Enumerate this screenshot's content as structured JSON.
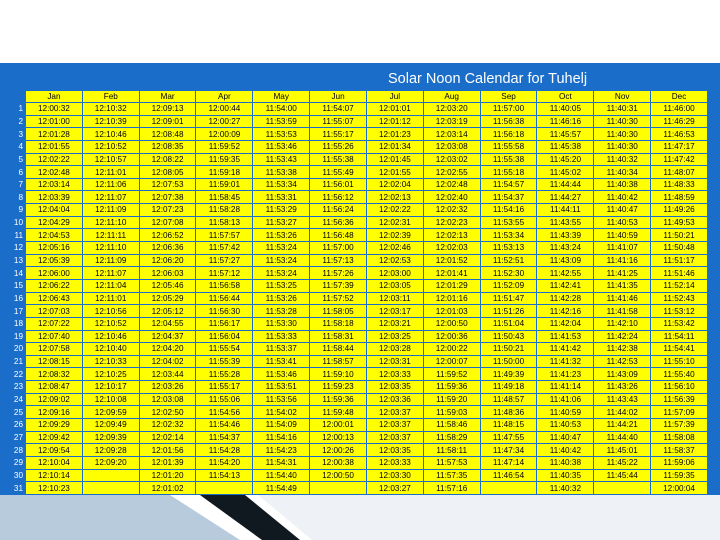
{
  "title": "Solar Noon Calendar for Tuhelj",
  "columns": [
    "Jan",
    "Feb",
    "Mar",
    "Apr",
    "May",
    "Jun",
    "Jul",
    "Aug",
    "Sep",
    "Oct",
    "Nov",
    "Dec"
  ],
  "rows": [
    {
      "day": "1",
      "times": [
        "12:00:32",
        "12:10:32",
        "12:09:13",
        "12:00:44",
        "11:54:00",
        "11:54:07",
        "12:01:01",
        "12:03:20",
        "11:57:00",
        "11:40:05",
        "11:40:31",
        "11:46:00"
      ]
    },
    {
      "day": "2",
      "times": [
        "12:01:00",
        "12:10:39",
        "12:09:01",
        "12:00:27",
        "11:53:59",
        "11:55:07",
        "12:01:12",
        "12:03:19",
        "11:56:38",
        "11:46:16",
        "11:40:30",
        "11:46:29"
      ]
    },
    {
      "day": "3",
      "times": [
        "12:01:28",
        "12:10:46",
        "12:08:48",
        "12:00:09",
        "11:53:53",
        "11:55:17",
        "12:01:23",
        "12:03:14",
        "11:56:18",
        "11:45:57",
        "11:40:30",
        "11:46:53"
      ]
    },
    {
      "day": "4",
      "times": [
        "12:01:55",
        "12:10:52",
        "12:08:35",
        "11:59:52",
        "11:53:46",
        "11:55:26",
        "12:01:34",
        "12:03:08",
        "11:55:58",
        "11:45:38",
        "11:40:30",
        "11:47:17"
      ]
    },
    {
      "day": "5",
      "times": [
        "12:02:22",
        "12:10:57",
        "12:08:22",
        "11:59:35",
        "11:53:43",
        "11:55:38",
        "12:01:45",
        "12:03:02",
        "11:55:38",
        "11:45:20",
        "11:40:32",
        "11:47:42"
      ]
    },
    {
      "day": "6",
      "times": [
        "12:02:48",
        "12:11:01",
        "12:08:05",
        "11:59:18",
        "11:53:38",
        "11:55:49",
        "12:01:55",
        "12:02:55",
        "11:55:18",
        "11:45:02",
        "11:40:34",
        "11:48:07"
      ]
    },
    {
      "day": "7",
      "times": [
        "12:03:14",
        "12:11:06",
        "12:07:53",
        "11:59:01",
        "11:53:34",
        "11:56:01",
        "12:02:04",
        "12:02:48",
        "11:54:57",
        "11:44:44",
        "11:40:38",
        "11:48:33"
      ]
    },
    {
      "day": "8",
      "times": [
        "12:03:39",
        "12:11:07",
        "12:07:38",
        "11:58:45",
        "11:53:31",
        "11:56:12",
        "12:02:13",
        "12:02:40",
        "11:54:37",
        "11:44:27",
        "11:40:42",
        "11:48:59"
      ]
    },
    {
      "day": "9",
      "times": [
        "12:04:04",
        "12:11:09",
        "12:07:23",
        "11:58:28",
        "11:53:29",
        "11:56:24",
        "12:02:22",
        "12:02:32",
        "11:54:16",
        "11:44:11",
        "11:40:47",
        "11:49:26"
      ]
    },
    {
      "day": "10",
      "times": [
        "12:04:29",
        "12:11:10",
        "12:07:08",
        "11:58:13",
        "11:53:27",
        "11:56:36",
        "12:02:31",
        "12:02:23",
        "11:53:55",
        "11:43:55",
        "11:40:53",
        "11:49:53"
      ]
    },
    {
      "day": "11",
      "times": [
        "12:04:53",
        "12:11:11",
        "12:06:52",
        "11:57:57",
        "11:53:26",
        "11:56:48",
        "12:02:39",
        "12:02:13",
        "11:53:34",
        "11:43:39",
        "11:40:59",
        "11:50:21"
      ]
    },
    {
      "day": "12",
      "times": [
        "12:05:16",
        "12:11:10",
        "12:06:36",
        "11:57:42",
        "11:53:24",
        "11:57:00",
        "12:02:46",
        "12:02:03",
        "11:53:13",
        "11:43:24",
        "11:41:07",
        "11:50:48"
      ]
    },
    {
      "day": "13",
      "times": [
        "12:05:39",
        "12:11:09",
        "12:06:20",
        "11:57:27",
        "11:53:24",
        "11:57:13",
        "12:02:53",
        "12:01:52",
        "11:52:51",
        "11:43:09",
        "11:41:16",
        "11:51:17"
      ]
    },
    {
      "day": "14",
      "times": [
        "12:06:00",
        "12:11:07",
        "12:06:03",
        "11:57:12",
        "11:53:24",
        "11:57:26",
        "12:03:00",
        "12:01:41",
        "11:52:30",
        "11:42:55",
        "11:41:25",
        "11:51:46"
      ]
    },
    {
      "day": "15",
      "times": [
        "12:06:22",
        "12:11:04",
        "12:05:46",
        "11:56:58",
        "11:53:25",
        "11:57:39",
        "12:03:05",
        "12:01:29",
        "11:52:09",
        "11:42:41",
        "11:41:35",
        "11:52:14"
      ]
    },
    {
      "day": "16",
      "times": [
        "12:06:43",
        "12:11:01",
        "12:05:29",
        "11:56:44",
        "11:53:26",
        "11:57:52",
        "12:03:11",
        "12:01:16",
        "11:51:47",
        "11:42:28",
        "11:41:46",
        "11:52:43"
      ]
    },
    {
      "day": "17",
      "times": [
        "12:07:03",
        "12:10:56",
        "12:05:12",
        "11:56:30",
        "11:53:28",
        "11:58:05",
        "12:03:17",
        "12:01:03",
        "11:51:26",
        "11:42:16",
        "11:41:58",
        "11:53:12"
      ]
    },
    {
      "day": "18",
      "times": [
        "12:07:22",
        "12:10:52",
        "12:04:55",
        "11:56:17",
        "11:53:30",
        "11:58:18",
        "12:03:21",
        "12:00:50",
        "11:51:04",
        "11:42:04",
        "11:42:10",
        "11:53:42"
      ]
    },
    {
      "day": "19",
      "times": [
        "12:07:40",
        "12:10:46",
        "12:04:37",
        "11:56:04",
        "11:53:33",
        "11:58:31",
        "12:03:25",
        "12:00:36",
        "11:50:43",
        "11:41:53",
        "11:42:24",
        "11:54:11"
      ]
    },
    {
      "day": "20",
      "times": [
        "12:07:58",
        "12:10:40",
        "12:04:20",
        "11:55:54",
        "11:53:37",
        "11:58:44",
        "12:03:28",
        "12:00:22",
        "11:50:21",
        "11:41:42",
        "11:42:38",
        "11:54:41"
      ]
    },
    {
      "day": "21",
      "times": [
        "12:08:15",
        "12:10:33",
        "12:04:02",
        "11:55:39",
        "11:53:41",
        "11:58:57",
        "12:03:31",
        "12:00:07",
        "11:50:00",
        "11:41:32",
        "11:42:53",
        "11:55:10"
      ]
    },
    {
      "day": "22",
      "times": [
        "12:08:32",
        "12:10:25",
        "12:03:44",
        "11:55:28",
        "11:53:46",
        "11:59:10",
        "12:03:33",
        "11:59:52",
        "11:49:39",
        "11:41:23",
        "11:43:09",
        "11:55:40"
      ]
    },
    {
      "day": "23",
      "times": [
        "12:08:47",
        "12:10:17",
        "12:03:26",
        "11:55:17",
        "11:53:51",
        "11:59:23",
        "12:03:35",
        "11:59:36",
        "11:49:18",
        "11:41:14",
        "11:43:26",
        "11:56:10"
      ]
    },
    {
      "day": "24",
      "times": [
        "12:09:02",
        "12:10:08",
        "12:03:08",
        "11:55:06",
        "11:53:56",
        "11:59:36",
        "12:03:36",
        "11:59:20",
        "11:48:57",
        "11:41:06",
        "11:43:43",
        "11:56:39"
      ]
    },
    {
      "day": "25",
      "times": [
        "12:09:16",
        "12:09:59",
        "12:02:50",
        "11:54:56",
        "11:54:02",
        "11:59:48",
        "12:03:37",
        "11:59:03",
        "11:48:36",
        "11:40:59",
        "11:44:02",
        "11:57:09"
      ]
    },
    {
      "day": "26",
      "times": [
        "12:09:29",
        "12:09:49",
        "12:02:32",
        "11:54:46",
        "11:54:09",
        "12:00:01",
        "12:03:37",
        "11:58:46",
        "11:48:15",
        "11:40:53",
        "11:44:21",
        "11:57:39"
      ]
    },
    {
      "day": "27",
      "times": [
        "12:09:42",
        "12:09:39",
        "12:02:14",
        "11:54:37",
        "11:54:16",
        "12:00:13",
        "12:03:37",
        "11:58:29",
        "11:47:55",
        "11:40:47",
        "11:44:40",
        "11:58:08"
      ]
    },
    {
      "day": "28",
      "times": [
        "12:09:54",
        "12:09:28",
        "12:01:56",
        "11:54:28",
        "11:54:23",
        "12:00:26",
        "12:03:35",
        "11:58:11",
        "11:47:34",
        "11:40:42",
        "11:45:01",
        "11:58:37"
      ]
    },
    {
      "day": "29",
      "times": [
        "12:10:04",
        "12:09:20",
        "12:01:39",
        "11:54:20",
        "11:54:31",
        "12:00:38",
        "12:03:33",
        "11:57:53",
        "11:47:14",
        "11:40:38",
        "11:45:22",
        "11:59:06"
      ]
    },
    {
      "day": "30",
      "times": [
        "12:10:14",
        "",
        "12:01:20",
        "11:54:13",
        "11:54:40",
        "12:00:50",
        "12:03:30",
        "11:57:35",
        "11:46:54",
        "11:40:35",
        "11:45:44",
        "11:59:35"
      ]
    },
    {
      "day": "31",
      "times": [
        "12:10:23",
        "",
        "12:01:02",
        "",
        "11:54:49",
        "",
        "12:03:27",
        "11:57:16",
        "",
        "11:40:32",
        "",
        "12:00:04"
      ]
    }
  ]
}
